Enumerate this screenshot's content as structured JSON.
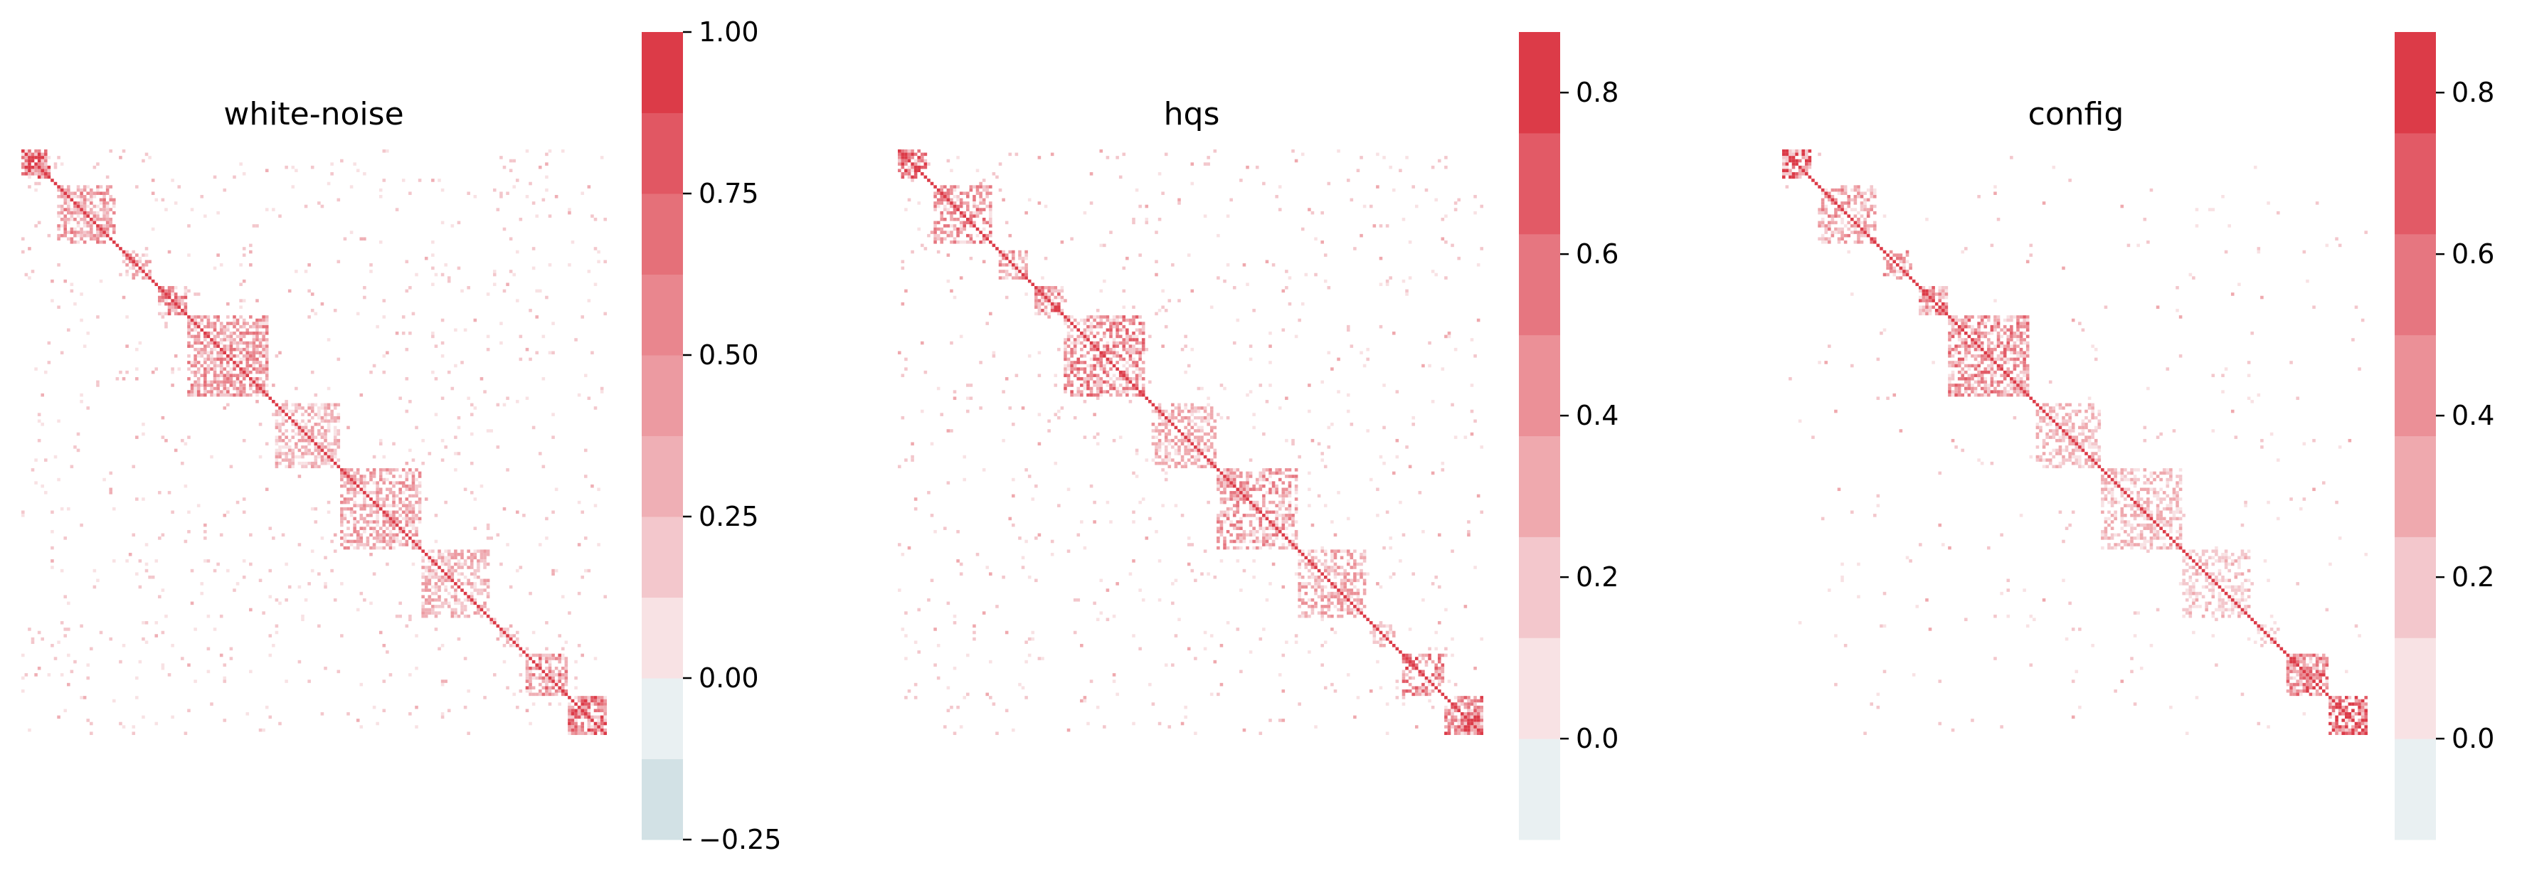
{
  "chart_data": [
    {
      "type": "heatmap",
      "title": "white-noise",
      "colorbar": {
        "vmin": -0.25,
        "vmax": 1.0,
        "ticks": [
          1.0,
          0.75,
          0.5,
          0.25,
          0.0,
          -0.25
        ],
        "tick_labels": [
          "1.00",
          "0.75",
          "0.50",
          "0.25",
          "0.00",
          "−0.25"
        ],
        "bin_colors": [
          "#d2e1e5",
          "#e9f0f2",
          "#f8e2e4",
          "#f3c7cc",
          "#efafb5",
          "#ec9aa1",
          "#e9868e",
          "#e57079",
          "#e15763",
          "#dc3b48"
        ]
      },
      "clusters": [
        {
          "range": [
            0.0,
            0.05
          ],
          "strength": 0.85
        },
        {
          "range": [
            0.06,
            0.16
          ],
          "strength": 0.55
        },
        {
          "range": [
            0.17,
            0.22
          ],
          "strength": 0.45
        },
        {
          "range": [
            0.23,
            0.28
          ],
          "strength": 0.75
        },
        {
          "range": [
            0.28,
            0.42
          ],
          "strength": 0.6
        },
        {
          "range": [
            0.43,
            0.54
          ],
          "strength": 0.4
        },
        {
          "range": [
            0.54,
            0.68
          ],
          "strength": 0.5
        },
        {
          "range": [
            0.68,
            0.8
          ],
          "strength": 0.4
        },
        {
          "range": [
            0.81,
            0.85
          ],
          "strength": 0.3
        },
        {
          "range": [
            0.86,
            0.93
          ],
          "strength": 0.7
        },
        {
          "range": [
            0.93,
            1.0
          ],
          "strength": 0.8
        }
      ],
      "background_density": 0.025
    },
    {
      "type": "heatmap",
      "title": "hqs",
      "colorbar": {
        "vmin": -0.125,
        "vmax": 0.875,
        "ticks": [
          0.8,
          0.6,
          0.4,
          0.2,
          0.0
        ],
        "tick_labels": [
          "0.8",
          "0.6",
          "0.4",
          "0.2",
          "0.0"
        ],
        "bin_colors": [
          "#e9f0f2",
          "#f8e2e4",
          "#f3c7cc",
          "#efa9ae",
          "#eb9097",
          "#e67680",
          "#e25a66",
          "#dc3b48"
        ]
      },
      "clusters": [
        {
          "range": [
            0.0,
            0.05
          ],
          "strength": 0.85
        },
        {
          "range": [
            0.06,
            0.16
          ],
          "strength": 0.55
        },
        {
          "range": [
            0.17,
            0.22
          ],
          "strength": 0.45
        },
        {
          "range": [
            0.23,
            0.28
          ],
          "strength": 0.75
        },
        {
          "range": [
            0.28,
            0.42
          ],
          "strength": 0.6
        },
        {
          "range": [
            0.43,
            0.54
          ],
          "strength": 0.35
        },
        {
          "range": [
            0.54,
            0.68
          ],
          "strength": 0.5
        },
        {
          "range": [
            0.68,
            0.8
          ],
          "strength": 0.4
        },
        {
          "range": [
            0.81,
            0.85
          ],
          "strength": 0.3
        },
        {
          "range": [
            0.86,
            0.93
          ],
          "strength": 0.7
        },
        {
          "range": [
            0.93,
            1.0
          ],
          "strength": 0.8
        }
      ],
      "background_density": 0.025
    },
    {
      "type": "heatmap",
      "title": "config",
      "colorbar": {
        "vmin": -0.125,
        "vmax": 0.875,
        "ticks": [
          0.8,
          0.6,
          0.4,
          0.2,
          0.0
        ],
        "tick_labels": [
          "0.8",
          "0.6",
          "0.4",
          "0.2",
          "0.0"
        ],
        "bin_colors": [
          "#e9f0f2",
          "#f8e2e4",
          "#f3c7cc",
          "#efa9ae",
          "#eb9097",
          "#e67680",
          "#e25a66",
          "#dc3b48"
        ]
      },
      "clusters": [
        {
          "range": [
            0.0,
            0.05
          ],
          "strength": 0.85
        },
        {
          "range": [
            0.06,
            0.16
          ],
          "strength": 0.45
        },
        {
          "range": [
            0.17,
            0.22
          ],
          "strength": 0.45
        },
        {
          "range": [
            0.23,
            0.28
          ],
          "strength": 0.75
        },
        {
          "range": [
            0.28,
            0.42
          ],
          "strength": 0.6
        },
        {
          "range": [
            0.43,
            0.54
          ],
          "strength": 0.25
        },
        {
          "range": [
            0.54,
            0.68
          ],
          "strength": 0.3
        },
        {
          "range": [
            0.68,
            0.8
          ],
          "strength": 0.2
        },
        {
          "range": [
            0.81,
            0.85
          ],
          "strength": 0.2
        },
        {
          "range": [
            0.86,
            0.93
          ],
          "strength": 0.7
        },
        {
          "range": [
            0.93,
            1.0
          ],
          "strength": 0.8
        }
      ],
      "background_density": 0.008
    }
  ]
}
